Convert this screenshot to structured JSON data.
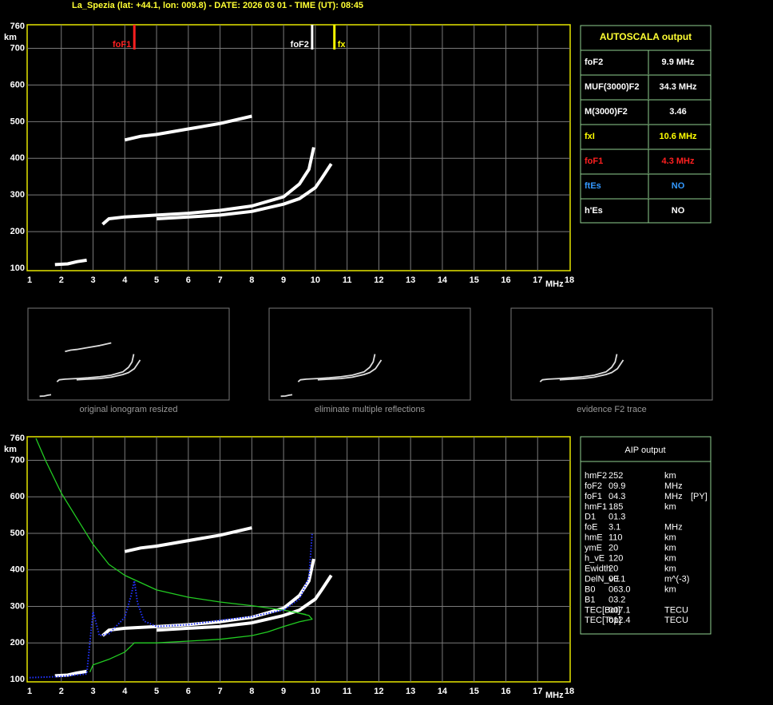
{
  "header": {
    "title": "La_Spezia (lat: +44.1, lon: 009.8) - DATE: 2026 03 01 - TIME (UT): 08:45"
  },
  "chart_data": [
    {
      "type": "ionogram",
      "x_label": "MHz",
      "y_label": "km",
      "xlim": [
        1,
        18
      ],
      "ylim": [
        100,
        760
      ],
      "xticks": [
        1,
        2,
        3,
        4,
        5,
        6,
        7,
        8,
        9,
        10,
        11,
        12,
        13,
        14,
        15,
        16,
        17,
        18
      ],
      "yticks": [
        100,
        200,
        300,
        400,
        500,
        600,
        700,
        760
      ],
      "grid": true,
      "grid_color": "#7a7a7a",
      "border_color": "#e6e600",
      "markers": [
        {
          "label": "foF1",
          "x": 4.3,
          "color": "#ff2020"
        },
        {
          "label": "foF2",
          "x": 9.9,
          "color": "#ffffff"
        },
        {
          "label": "fx",
          "x": 10.6,
          "color": "#ffff00"
        }
      ],
      "series": [
        {
          "color": "#ffffff",
          "x": [
            1.8,
            2.2,
            2.5,
            2.8
          ],
          "values": [
            110,
            112,
            118,
            122
          ]
        },
        {
          "color": "#ffffff",
          "x": [
            3.3,
            3.5,
            4,
            5,
            6,
            7,
            8,
            9,
            9.5,
            9.8,
            9.95
          ],
          "values": [
            220,
            235,
            240,
            245,
            250,
            258,
            270,
            295,
            330,
            370,
            430
          ]
        },
        {
          "color": "#ffffff",
          "x": [
            5,
            6,
            7,
            8,
            9,
            9.5,
            10,
            10.2,
            10.5
          ],
          "values": [
            235,
            240,
            245,
            255,
            275,
            290,
            320,
            345,
            385
          ]
        },
        {
          "color": "#ffffff",
          "x": [
            4,
            4.5,
            5,
            6,
            7,
            7.5,
            8
          ],
          "values": [
            450,
            460,
            465,
            480,
            495,
            505,
            515
          ]
        }
      ]
    },
    {
      "type": "ionogram",
      "x_label": "MHz",
      "y_label": "km",
      "xlim": [
        1,
        18
      ],
      "ylim": [
        100,
        760
      ],
      "xticks": [
        1,
        2,
        3,
        4,
        5,
        6,
        7,
        8,
        9,
        10,
        11,
        12,
        13,
        14,
        15,
        16,
        17,
        18
      ],
      "yticks": [
        100,
        200,
        300,
        400,
        500,
        600,
        700,
        760
      ],
      "grid": true,
      "grid_color": "#7a7a7a",
      "border_color": "#e6e600",
      "series": [
        {
          "color": "#ffffff",
          "x": [
            1.8,
            2.2,
            2.5,
            2.8
          ],
          "values": [
            110,
            112,
            118,
            122
          ]
        },
        {
          "color": "#ffffff",
          "x": [
            3.3,
            3.5,
            4,
            5,
            6,
            7,
            8,
            9,
            9.5,
            9.8,
            9.95
          ],
          "values": [
            220,
            235,
            240,
            245,
            250,
            258,
            270,
            295,
            330,
            370,
            430
          ]
        },
        {
          "color": "#ffffff",
          "x": [
            5,
            6,
            7,
            8,
            9,
            9.5,
            10,
            10.2,
            10.5
          ],
          "values": [
            235,
            240,
            245,
            255,
            275,
            290,
            320,
            345,
            385
          ]
        },
        {
          "color": "#ffffff",
          "x": [
            4,
            4.5,
            5,
            6,
            7,
            7.5,
            8
          ],
          "values": [
            450,
            460,
            465,
            480,
            495,
            505,
            515
          ]
        },
        {
          "color": "#22cc22",
          "x": [
            1.2,
            1.5,
            2,
            2.5,
            3,
            3.5,
            4,
            5,
            6,
            7,
            8,
            9,
            9.7
          ],
          "values": [
            760,
            700,
            610,
            540,
            470,
            415,
            385,
            345,
            325,
            312,
            302,
            290,
            278
          ]
        },
        {
          "color": "#22cc22",
          "x": [
            2.9,
            3,
            3.5,
            4,
            4.3,
            5,
            6,
            7,
            8,
            8.5,
            9,
            9.5,
            9.9,
            9.8,
            9.3
          ],
          "values": [
            120,
            140,
            155,
            175,
            200,
            200,
            205,
            210,
            220,
            230,
            245,
            258,
            265,
            275,
            285
          ]
        },
        {
          "color": "#2233ff",
          "dotted": true,
          "x": [
            1,
            2,
            2.8,
            3,
            3.2,
            3.5,
            4,
            4.2,
            4.3,
            4.4,
            4.6,
            5,
            6,
            7,
            8,
            9,
            9.5,
            9.8,
            9.9
          ],
          "values": [
            105,
            108,
            115,
            285,
            220,
            225,
            270,
            330,
            370,
            310,
            260,
            245,
            250,
            262,
            272,
            290,
            320,
            380,
            500
          ]
        }
      ]
    }
  ],
  "thumbnails": [
    {
      "caption": "original ionogram resized"
    },
    {
      "caption": "eliminate multiple reflections"
    },
    {
      "caption": "evidence F2 trace"
    }
  ],
  "autoscala": {
    "title": "AUTOSCALA output",
    "rows": [
      {
        "label": "foF2",
        "value": "9.9 MHz",
        "color": "#ffffff"
      },
      {
        "label": "MUF(3000)F2",
        "value": "34.3 MHz",
        "color": "#ffffff"
      },
      {
        "label": "M(3000)F2",
        "value": "3.46",
        "color": "#ffffff"
      },
      {
        "label": "fxI",
        "value": "10.6 MHz",
        "color": "#ffff00"
      },
      {
        "label": "foF1",
        "value": "4.3 MHz",
        "color": "#ff2020"
      },
      {
        "label": "ftEs",
        "value": "NO",
        "color": "#3399ff"
      },
      {
        "label": "h'Es",
        "value": "NO",
        "color": "#ffffff"
      }
    ]
  },
  "aip": {
    "title": "AIP output",
    "rows": [
      [
        "hmF2",
        "252",
        "km"
      ],
      [
        "foF2",
        "09.9",
        "MHz"
      ],
      [
        "foF1",
        "04.3",
        "MHz",
        "[PY]"
      ],
      [
        "hmF1",
        "185",
        "km"
      ],
      [
        "D1",
        "01.3"
      ],
      [
        "foE",
        "3.1",
        "MHz"
      ],
      [
        "hmE",
        "110",
        "km"
      ],
      [
        "ymE",
        "20",
        "km"
      ],
      [
        "h_vE",
        "120",
        "km"
      ],
      [
        "Ewidth",
        "20",
        "km"
      ],
      [
        "DelN_vE",
        "00.1",
        "m^(-3)"
      ],
      [
        "B0",
        "063.0",
        "km"
      ],
      [
        "B1",
        "03.2"
      ],
      [
        "TEC[Bot]",
        "007.1",
        "TECU"
      ],
      [
        "TEC[Top]",
        "012.4",
        "TECU"
      ]
    ]
  }
}
